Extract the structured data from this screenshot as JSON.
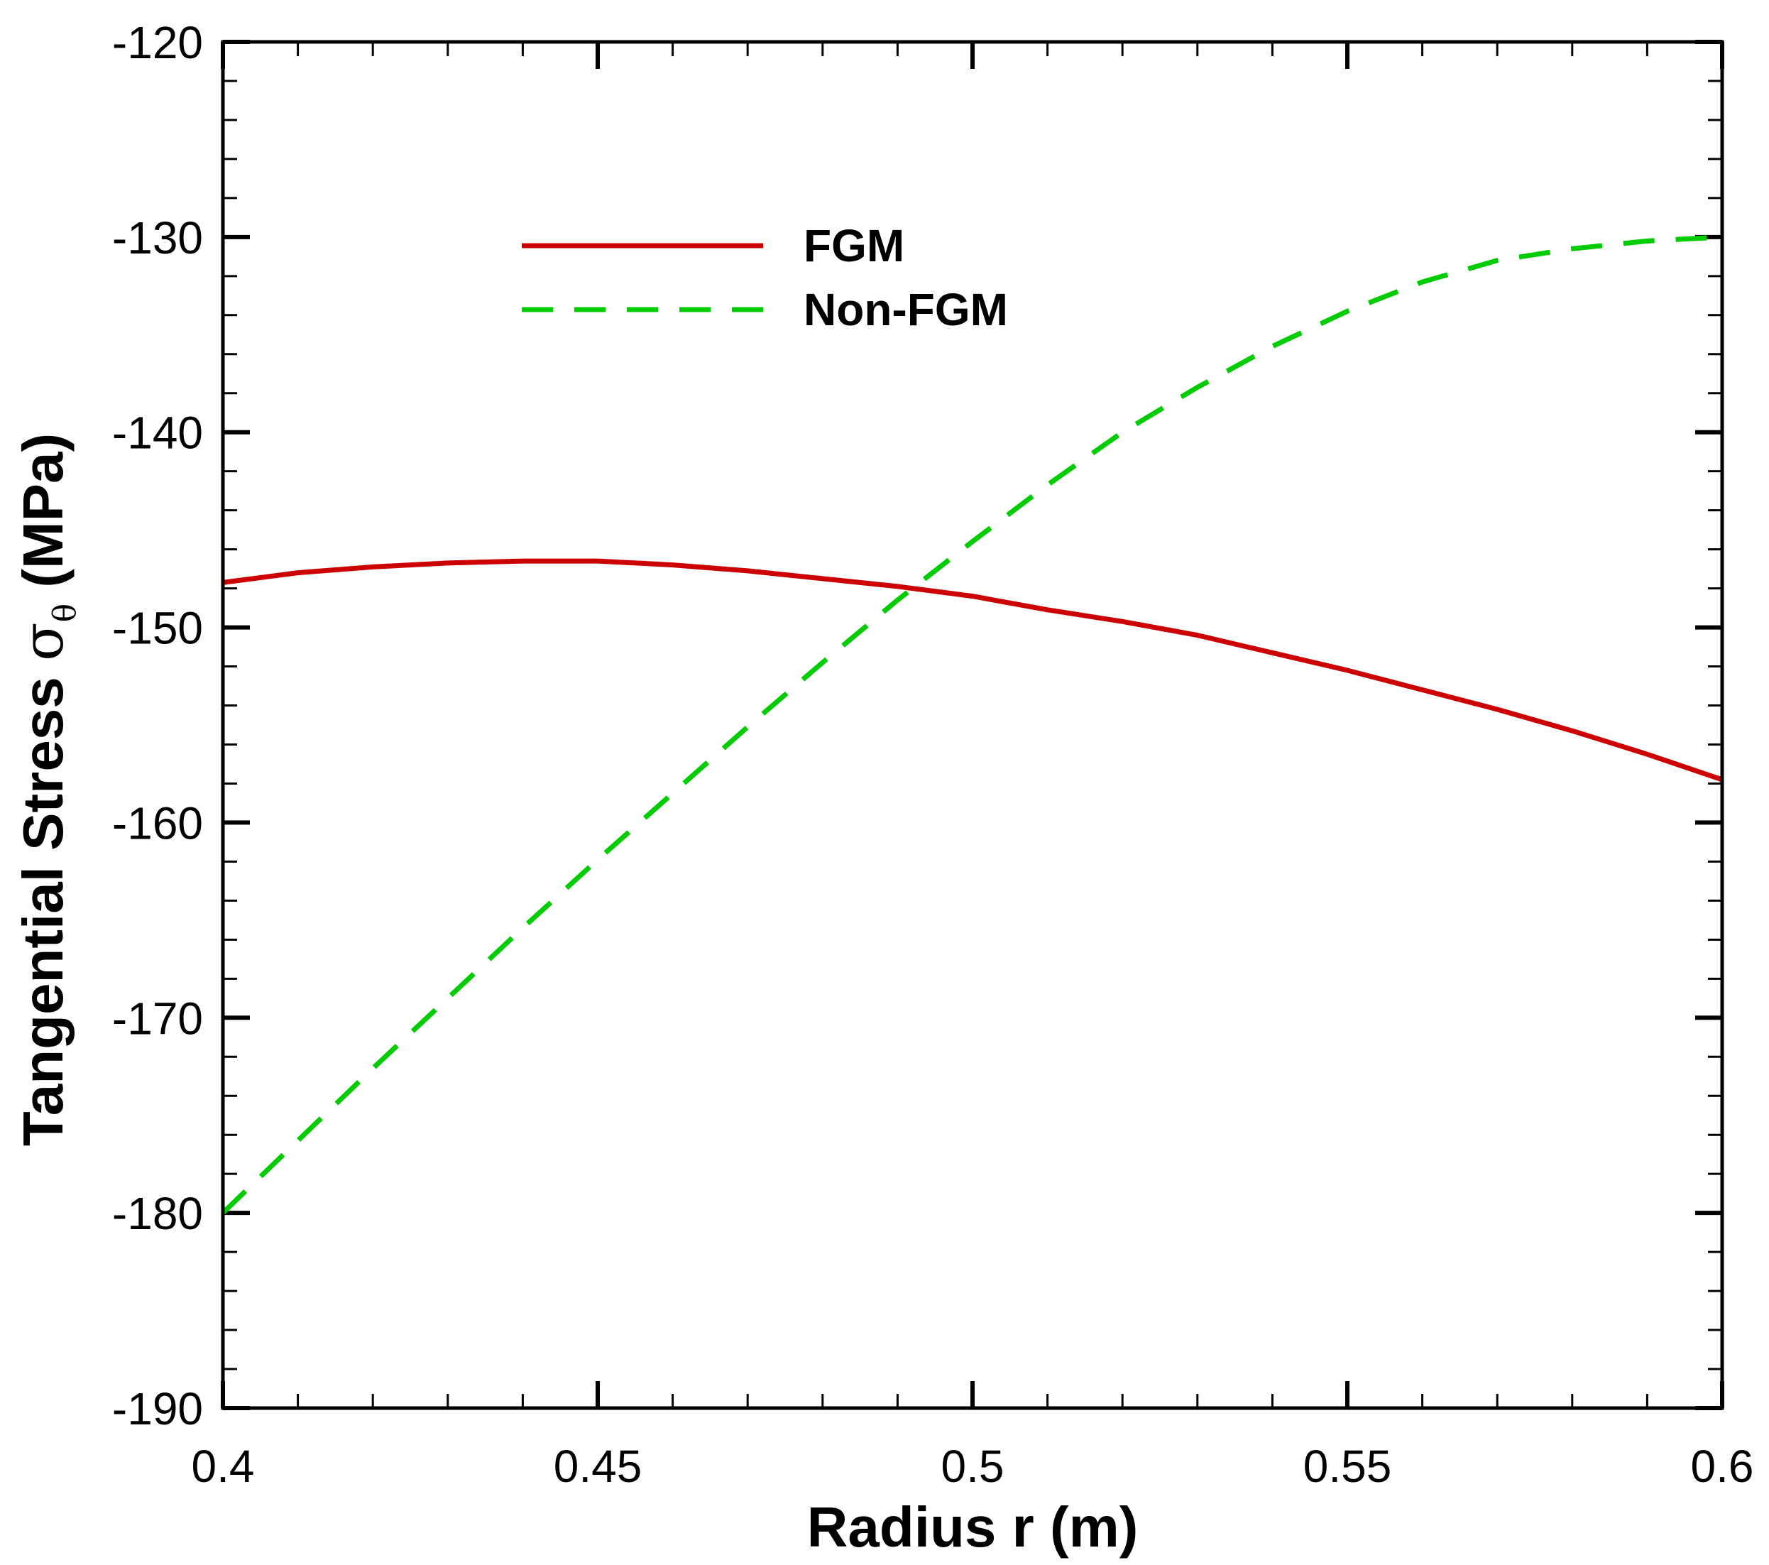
{
  "chart_data": {
    "type": "line",
    "title": "",
    "xlabel": "Radius r (m)",
    "ylabel": {
      "main": "Tangential Stress ",
      "symbol": "σ",
      "subscript": "θ",
      "unit": " (MPa)"
    },
    "xlim": [
      0.4,
      0.6
    ],
    "ylim": [
      -190,
      -120
    ],
    "x_major_ticks": [
      0.4,
      0.45,
      0.5,
      0.55,
      0.6
    ],
    "x_tick_labels": [
      "0.4",
      "0.45",
      "0.5",
      "0.55",
      "0.6"
    ],
    "x_minor_step": 0.01,
    "y_major_ticks": [
      -190,
      -180,
      -170,
      -160,
      -150,
      -140,
      -130,
      -120
    ],
    "y_tick_labels": [
      "-190",
      "-180",
      "-170",
      "-160",
      "-150",
      "-140",
      "-130",
      "-120"
    ],
    "y_minor_step": 2,
    "grid": false,
    "legend_position": "top-left",
    "series": [
      {
        "name": "FGM",
        "color": "#cc0000",
        "style": "solid",
        "x": [
          0.4,
          0.41,
          0.42,
          0.43,
          0.44,
          0.45,
          0.46,
          0.47,
          0.48,
          0.49,
          0.5,
          0.51,
          0.52,
          0.53,
          0.54,
          0.55,
          0.56,
          0.57,
          0.58,
          0.59,
          0.6
        ],
        "y": [
          -147.7,
          -147.2,
          -146.9,
          -146.7,
          -146.6,
          -146.6,
          -146.8,
          -147.1,
          -147.5,
          -147.9,
          -148.4,
          -149.1,
          -149.7,
          -150.4,
          -151.3,
          -152.2,
          -153.2,
          -154.2,
          -155.3,
          -156.5,
          -157.8
        ]
      },
      {
        "name": "Non-FGM",
        "color": "#00cc00",
        "style": "dashed",
        "x": [
          0.4,
          0.41,
          0.42,
          0.43,
          0.44,
          0.45,
          0.46,
          0.47,
          0.48,
          0.49,
          0.5,
          0.51,
          0.52,
          0.53,
          0.54,
          0.55,
          0.56,
          0.57,
          0.58,
          0.59,
          0.6
        ],
        "y": [
          -180.0,
          -176.3,
          -172.6,
          -169.0,
          -165.4,
          -161.9,
          -158.5,
          -155.1,
          -151.8,
          -148.6,
          -145.6,
          -142.7,
          -140.0,
          -137.7,
          -135.6,
          -133.8,
          -132.3,
          -131.2,
          -130.6,
          -130.2,
          -130.0
        ]
      }
    ]
  }
}
